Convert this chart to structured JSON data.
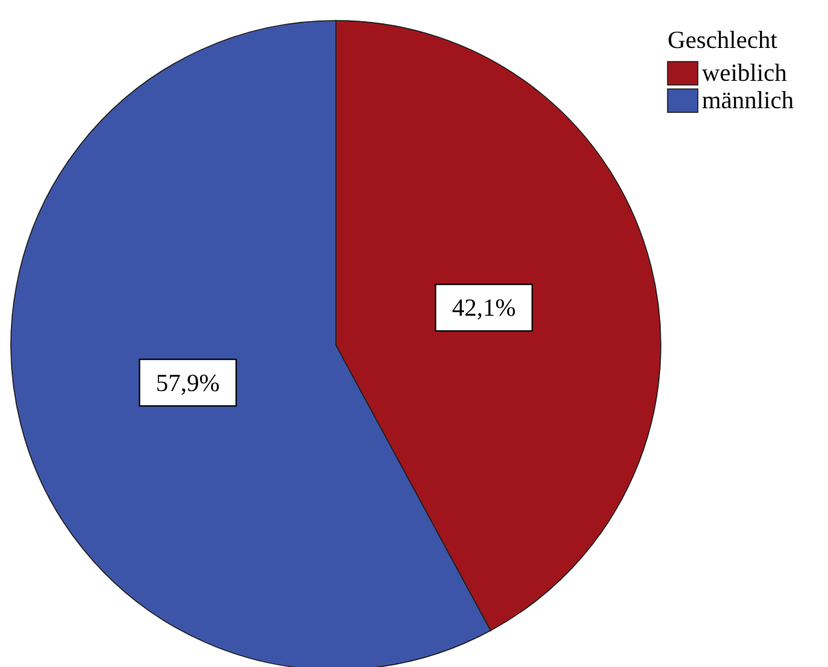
{
  "chart_data": {
    "type": "pie",
    "legend_title": "Geschlecht",
    "legend": "top right",
    "categories": [
      "weiblich",
      "männlich"
    ],
    "values": [
      42.1,
      57.9
    ],
    "colors": [
      "#a0151b",
      "#3d55a8"
    ],
    "value_labels": [
      "42,1%",
      "57,9%"
    ]
  }
}
